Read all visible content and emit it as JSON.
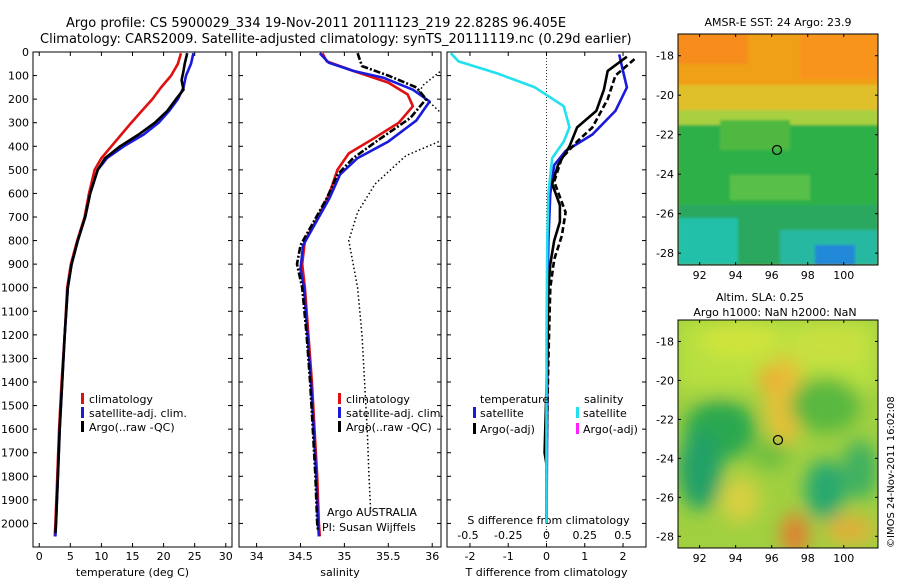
{
  "header": {
    "line1": "Argo profile: CS 5900029_334 19-Nov-2011 20111123_219 22.828S 96.405E",
    "line2": "Climatology: CARS2009. Satellite-adjusted climatology: synTS_20111119.nc (0.29d earlier)"
  },
  "colors": {
    "climatology": "#e01010",
    "satellite": "#1a1adc",
    "argo": "#000000",
    "sal_satellite": "#22e0ee",
    "sal_argo": "#ff22ff"
  },
  "chart_data": [
    {
      "type": "line",
      "id": "temperature",
      "xlabel": "temperature (deg C)",
      "xlim": [
        -1,
        31
      ],
      "ylim": [
        2100,
        0
      ],
      "x_ticks": [
        0,
        5,
        10,
        15,
        20,
        25,
        30
      ],
      "y_ticks": [
        0,
        100,
        200,
        300,
        400,
        500,
        600,
        700,
        800,
        900,
        1000,
        1100,
        1200,
        1300,
        1400,
        1500,
        1600,
        1700,
        1800,
        1900,
        2000
      ],
      "legend": [
        "climatology",
        "satellite-adj. clim.",
        "Argo(..raw -QC)"
      ],
      "series": [
        {
          "name": "climatology",
          "color": "climatology",
          "style": "solid",
          "points": [
            [
              22.8,
              5
            ],
            [
              22.3,
              50
            ],
            [
              21.2,
              100
            ],
            [
              19.6,
              150
            ],
            [
              18.2,
              200
            ],
            [
              16.5,
              250
            ],
            [
              14.8,
              300
            ],
            [
              13.2,
              350
            ],
            [
              11.6,
              400
            ],
            [
              10.0,
              450
            ],
            [
              8.9,
              500
            ],
            [
              8.0,
              600
            ],
            [
              7.3,
              700
            ],
            [
              6.1,
              800
            ],
            [
              5.1,
              900
            ],
            [
              4.5,
              1000
            ],
            [
              4.1,
              1200
            ],
            [
              3.6,
              1400
            ],
            [
              3.2,
              1600
            ],
            [
              2.9,
              1800
            ],
            [
              2.6,
              2000
            ],
            [
              2.5,
              2055
            ]
          ]
        },
        {
          "name": "satellite-adj. clim.",
          "color": "satellite",
          "style": "solid",
          "points": [
            [
              24.8,
              5
            ],
            [
              24.4,
              50
            ],
            [
              23.6,
              100
            ],
            [
              23.2,
              150
            ],
            [
              22.3,
              200
            ],
            [
              20.9,
              250
            ],
            [
              19.2,
              300
            ],
            [
              16.8,
              350
            ],
            [
              13.6,
              400
            ],
            [
              10.9,
              450
            ],
            [
              9.4,
              500
            ],
            [
              8.2,
              600
            ],
            [
              7.4,
              700
            ],
            [
              6.2,
              800
            ],
            [
              5.2,
              900
            ],
            [
              4.6,
              1000
            ],
            [
              4.1,
              1200
            ],
            [
              3.7,
              1400
            ],
            [
              3.3,
              1600
            ],
            [
              3.0,
              1800
            ],
            [
              2.7,
              2000
            ],
            [
              2.6,
              2055
            ]
          ]
        },
        {
          "name": "Argo(..raw -QC)",
          "color": "argo",
          "style": "solid",
          "points": [
            [
              23.8,
              5
            ],
            [
              23.4,
              50
            ],
            [
              23.2,
              80
            ],
            [
              22.9,
              120
            ],
            [
              23.2,
              160
            ],
            [
              22.0,
              200
            ],
            [
              20.6,
              250
            ],
            [
              18.6,
              300
            ],
            [
              16.0,
              350
            ],
            [
              13.0,
              400
            ],
            [
              10.6,
              450
            ],
            [
              9.4,
              500
            ],
            [
              8.2,
              600
            ],
            [
              7.4,
              700
            ],
            [
              6.2,
              800
            ],
            [
              5.2,
              900
            ],
            [
              4.6,
              1000
            ],
            [
              4.1,
              1200
            ],
            [
              3.7,
              1400
            ],
            [
              3.3,
              1600
            ],
            [
              3.0,
              1800
            ],
            [
              2.7,
              2000
            ],
            [
              2.6,
              2040
            ]
          ]
        }
      ]
    },
    {
      "type": "line",
      "id": "salinity",
      "xlabel": "salinity",
      "xlim": [
        33.8,
        36.1
      ],
      "ylim": [
        2100,
        0
      ],
      "x_ticks": [
        34,
        34.5,
        35,
        35.5,
        36
      ],
      "legend": [
        "climatology",
        "satellite-adj. clim.",
        "Argo(..raw -QC)"
      ],
      "annotation1": "Argo AUSTRALIA",
      "annotation2": "PI: Susan Wijffels",
      "series": [
        {
          "name": "climatology",
          "color": "climatology",
          "style": "solid",
          "points": [
            [
              34.75,
              5
            ],
            [
              34.8,
              40
            ],
            [
              35.1,
              80
            ],
            [
              35.5,
              130
            ],
            [
              35.72,
              180
            ],
            [
              35.78,
              230
            ],
            [
              35.62,
              300
            ],
            [
              35.32,
              370
            ],
            [
              35.05,
              430
            ],
            [
              34.92,
              500
            ],
            [
              34.83,
              600
            ],
            [
              34.7,
              700
            ],
            [
              34.55,
              800
            ],
            [
              34.52,
              900
            ],
            [
              34.55,
              1000
            ],
            [
              34.59,
              1200
            ],
            [
              34.63,
              1400
            ],
            [
              34.66,
              1600
            ],
            [
              34.69,
              1800
            ],
            [
              34.71,
              2000
            ],
            [
              34.72,
              2055
            ]
          ]
        },
        {
          "name": "satellite-adj. clim.",
          "color": "satellite",
          "style": "solid",
          "points": [
            [
              34.72,
              5
            ],
            [
              34.82,
              45
            ],
            [
              35.1,
              80
            ],
            [
              35.45,
              110
            ],
            [
              35.78,
              160
            ],
            [
              35.97,
              210
            ],
            [
              35.82,
              290
            ],
            [
              35.5,
              380
            ],
            [
              35.15,
              450
            ],
            [
              34.95,
              520
            ],
            [
              34.83,
              620
            ],
            [
              34.68,
              720
            ],
            [
              34.53,
              820
            ],
            [
              34.5,
              920
            ],
            [
              34.54,
              1000
            ],
            [
              34.58,
              1200
            ],
            [
              34.62,
              1400
            ],
            [
              34.65,
              1600
            ],
            [
              34.68,
              1800
            ],
            [
              34.7,
              2000
            ],
            [
              34.71,
              2055
            ]
          ]
        },
        {
          "name": "Argo(..raw -QC)",
          "color": "argo",
          "style": "dashdot",
          "points": [
            [
              35.15,
              5
            ],
            [
              35.2,
              60
            ],
            [
              35.5,
              100
            ],
            [
              35.82,
              150
            ],
            [
              35.93,
              200
            ],
            [
              35.75,
              280
            ],
            [
              35.4,
              370
            ],
            [
              35.1,
              450
            ],
            [
              34.92,
              520
            ],
            [
              34.8,
              620
            ],
            [
              34.65,
              720
            ],
            [
              34.5,
              820
            ],
            [
              34.46,
              900
            ],
            [
              34.52,
              1000
            ],
            [
              34.57,
              1200
            ],
            [
              34.61,
              1400
            ],
            [
              34.64,
              1600
            ],
            [
              34.67,
              1800
            ],
            [
              34.69,
              2000
            ],
            [
              34.7,
              2030
            ]
          ]
        },
        {
          "name": "",
          "color": "argo",
          "style": "dotted",
          "points": [
            [
              36.3,
              20
            ],
            [
              35.9,
              140
            ],
            [
              35.85,
              170
            ],
            [
              36.3,
              330
            ]
          ]
        },
        {
          "name": "",
          "color": "argo",
          "style": "dotted",
          "points": [
            [
              36.2,
              360
            ],
            [
              35.7,
              440
            ],
            [
              35.35,
              560
            ],
            [
              35.15,
              680
            ],
            [
              35.05,
              800
            ],
            [
              35.1,
              900
            ],
            [
              35.15,
              1000
            ],
            [
              35.2,
              1200
            ],
            [
              35.23,
              1400
            ],
            [
              35.26,
              1600
            ],
            [
              35.28,
              1800
            ],
            [
              35.3,
              1950
            ]
          ]
        }
      ]
    },
    {
      "type": "line",
      "id": "difference",
      "xlabel": "T difference from climatology",
      "top_label": "S difference from climatology",
      "xlim": [
        -2.6,
        2.6
      ],
      "ylim": [
        2100,
        0
      ],
      "x_ticks": [
        -2,
        -1,
        0,
        1,
        2
      ],
      "top_ticks": [
        "-0.5",
        "-0.25",
        "0",
        "0.25",
        "0.5"
      ],
      "legend_titles": [
        "temperature",
        "salinity"
      ],
      "legend_left": [
        "satellite",
        "Argo(-adj)"
      ],
      "legend_right": [
        "satellite",
        "Argo(-adj)"
      ],
      "series": [
        {
          "name": "satellite",
          "color": "satellite",
          "style": "solid",
          "points": [
            [
              1.9,
              10
            ],
            [
              2.0,
              80
            ],
            [
              2.1,
              150
            ],
            [
              1.8,
              250
            ],
            [
              1.2,
              350
            ],
            [
              0.5,
              420
            ],
            [
              0.2,
              480
            ],
            [
              0.1,
              600
            ],
            [
              0.05,
              800
            ],
            [
              0.03,
              1000
            ],
            [
              0.02,
              1500
            ],
            [
              0.0,
              2000
            ]
          ]
        },
        {
          "name": "Argo(-adj)",
          "color": "argo",
          "style": "solid",
          "points": [
            [
              2.1,
              20
            ],
            [
              1.6,
              80
            ],
            [
              1.5,
              160
            ],
            [
              1.3,
              250
            ],
            [
              0.8,
              320
            ],
            [
              0.6,
              400
            ],
            [
              0.3,
              480
            ],
            [
              0.15,
              560
            ],
            [
              0.35,
              650
            ],
            [
              0.35,
              720
            ],
            [
              0.2,
              800
            ],
            [
              0.1,
              900
            ],
            [
              0.05,
              1000
            ],
            [
              0.02,
              1300
            ],
            [
              -0.05,
              1700
            ],
            [
              0.0,
              1750
            ],
            [
              0.0,
              2000
            ]
          ]
        },
        {
          "name": "",
          "color": "argo",
          "style": "dashed",
          "points": [
            [
              2.3,
              30
            ],
            [
              1.8,
              100
            ],
            [
              1.6,
              200
            ],
            [
              1.2,
              320
            ],
            [
              0.8,
              380
            ],
            [
              0.4,
              450
            ],
            [
              0.2,
              550
            ],
            [
              0.5,
              680
            ],
            [
              0.4,
              780
            ],
            [
              0.2,
              880
            ],
            [
              0.1,
              1000
            ],
            [
              0.05,
              1300
            ],
            [
              0.0,
              1700
            ],
            [
              0.0,
              2000
            ]
          ]
        },
        {
          "name": "satellite",
          "color": "sal_satellite",
          "style": "solid",
          "points": [
            [
              -2.5,
              5
            ],
            [
              -2.3,
              40
            ],
            [
              -1.3,
              90
            ],
            [
              -0.3,
              150
            ],
            [
              0.45,
              230
            ],
            [
              0.6,
              320
            ],
            [
              0.45,
              380
            ],
            [
              0.15,
              450
            ],
            [
              0.05,
              600
            ],
            [
              0.02,
              800
            ],
            [
              0.0,
              1200
            ],
            [
              0.0,
              2000
            ]
          ]
        }
      ]
    },
    {
      "type": "heatmap",
      "id": "sst_map",
      "title": "AMSR-E SST: 24 Argo: 23.9",
      "x_ticks": [
        92,
        94,
        96,
        98,
        100
      ],
      "y_ticks": [
        -18,
        -20,
        -22,
        -24,
        -26,
        -28
      ]
    },
    {
      "type": "heatmap",
      "id": "sla_map",
      "title1": "Altim. SLA: 0.25",
      "title2": "Argo h1000: NaN h2000: NaN",
      "x_ticks": [
        92,
        94,
        96,
        98,
        100
      ],
      "y_ticks": [
        -18,
        -20,
        -22,
        -24,
        -26,
        -28
      ]
    }
  ],
  "footer": {
    "credit": "©IMOS 24-Nov-2011 16:02:08"
  }
}
